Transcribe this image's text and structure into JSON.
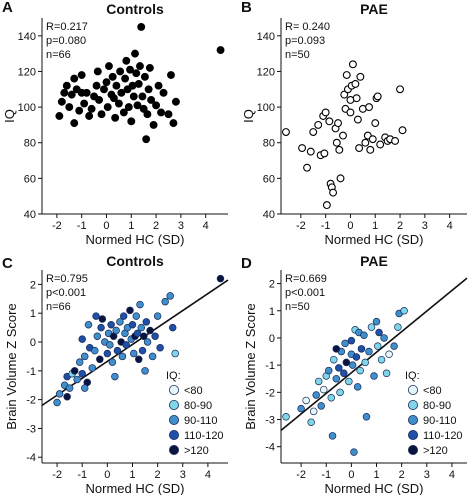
{
  "chart_data": [
    {
      "panel": "A",
      "type": "scatter",
      "title": "Controls",
      "xlabel": "Normed HC (SD)",
      "ylabel": "IQ",
      "xlim": [
        -2.6,
        4.9
      ],
      "ylim": [
        40,
        150
      ],
      "xticks": [
        -2,
        -1,
        0,
        1,
        2,
        3,
        4
      ],
      "yticks": [
        40,
        60,
        80,
        100,
        120,
        140
      ],
      "stats": [
        "R=0.217",
        "p=0.080",
        "n=66"
      ],
      "filled": true,
      "points": [
        [
          -1.9,
          95
        ],
        [
          -1.8,
          103
        ],
        [
          -1.7,
          108
        ],
        [
          -1.6,
          112
        ],
        [
          -1.5,
          100
        ],
        [
          -1.4,
          107
        ],
        [
          -1.3,
          116
        ],
        [
          -1.2,
          110
        ],
        [
          -1.1,
          98
        ],
        [
          -1.0,
          108
        ],
        [
          -1.0,
          118
        ],
        [
          -0.9,
          102
        ],
        [
          -0.8,
          108
        ],
        [
          -0.7,
          95
        ],
        [
          -0.6,
          99
        ],
        [
          -0.5,
          106
        ],
        [
          -0.4,
          112
        ],
        [
          -0.35,
          120
        ],
        [
          -0.3,
          104
        ],
        [
          -0.2,
          96
        ],
        [
          -0.1,
          110
        ],
        [
          0.0,
          114
        ],
        [
          0.05,
          100
        ],
        [
          0.1,
          123
        ],
        [
          0.2,
          107
        ],
        [
          0.25,
          117
        ],
        [
          0.3,
          105
        ],
        [
          0.35,
          94
        ],
        [
          0.4,
          112
        ],
        [
          0.5,
          102
        ],
        [
          0.55,
          120
        ],
        [
          0.6,
          108
        ],
        [
          0.7,
          97
        ],
        [
          0.75,
          116
        ],
        [
          0.8,
          126
        ],
        [
          0.85,
          110
        ],
        [
          0.9,
          100
        ],
        [
          0.95,
          121
        ],
        [
          1.0,
          92
        ],
        [
          1.05,
          112
        ],
        [
          1.1,
          106
        ],
        [
          1.15,
          130
        ],
        [
          1.2,
          119
        ],
        [
          1.25,
          101
        ],
        [
          1.3,
          113
        ],
        [
          1.35,
          123
        ],
        [
          1.4,
          145
        ],
        [
          1.45,
          106
        ],
        [
          1.5,
          99
        ],
        [
          1.55,
          117
        ],
        [
          1.6,
          82
        ],
        [
          1.65,
          96
        ],
        [
          1.7,
          110
        ],
        [
          1.75,
          122
        ],
        [
          1.8,
          104
        ],
        [
          1.9,
          90
        ],
        [
          2.0,
          101
        ],
        [
          2.1,
          112
        ],
        [
          2.2,
          97
        ],
        [
          2.3,
          108
        ],
        [
          2.5,
          96
        ],
        [
          2.6,
          118
        ],
        [
          2.7,
          91
        ],
        [
          2.8,
          103
        ],
        [
          -1.3,
          91
        ],
        [
          4.6,
          132
        ]
      ]
    },
    {
      "panel": "B",
      "type": "scatter",
      "title": "PAE",
      "xlabel": "Normed HC (SD)",
      "ylabel": "IQ",
      "xlim": [
        -2.8,
        4.7
      ],
      "ylim": [
        40,
        150
      ],
      "xticks": [
        -2,
        -1,
        0,
        1,
        2,
        3,
        4
      ],
      "yticks": [
        40,
        60,
        80,
        100,
        120,
        140
      ],
      "stats": [
        "R= 0.240",
        "p=0.093",
        "n=50"
      ],
      "filled": false,
      "points": [
        [
          -2.6,
          86
        ],
        [
          -1.95,
          77
        ],
        [
          -1.75,
          66
        ],
        [
          -1.6,
          75
        ],
        [
          -1.5,
          86
        ],
        [
          -1.3,
          90
        ],
        [
          -1.2,
          73
        ],
        [
          -1.1,
          95
        ],
        [
          -1.05,
          74
        ],
        [
          -1.0,
          97
        ],
        [
          -0.95,
          45
        ],
        [
          -0.85,
          92
        ],
        [
          -0.8,
          57
        ],
        [
          -0.75,
          55
        ],
        [
          -0.7,
          52
        ],
        [
          -0.6,
          88
        ],
        [
          -0.55,
          80
        ],
        [
          -0.5,
          91
        ],
        [
          -0.45,
          76
        ],
        [
          -0.4,
          60
        ],
        [
          -0.3,
          84
        ],
        [
          -0.25,
          107
        ],
        [
          -0.2,
          99
        ],
        [
          -0.15,
          118
        ],
        [
          -0.1,
          110
        ],
        [
          0.0,
          104
        ],
        [
          0.0,
          97
        ],
        [
          0.05,
          112
        ],
        [
          0.1,
          124
        ],
        [
          0.2,
          113
        ],
        [
          0.25,
          105
        ],
        [
          0.3,
          93
        ],
        [
          0.35,
          77
        ],
        [
          0.4,
          117
        ],
        [
          0.5,
          99
        ],
        [
          0.6,
          80
        ],
        [
          0.7,
          84
        ],
        [
          0.75,
          100
        ],
        [
          0.8,
          76
        ],
        [
          0.9,
          82
        ],
        [
          1.0,
          91
        ],
        [
          1.05,
          105
        ],
        [
          1.1,
          106
        ],
        [
          1.2,
          79
        ],
        [
          1.4,
          83
        ],
        [
          1.5,
          81
        ],
        [
          1.6,
          82
        ],
        [
          1.8,
          81
        ],
        [
          2.0,
          110
        ],
        [
          2.1,
          87
        ]
      ]
    },
    {
      "panel": "C",
      "type": "scatter",
      "title": "Controls",
      "xlabel": "Normed HC (SD)",
      "ylabel": "Brain Volume Z Score",
      "xlim": [
        -2.6,
        4.8
      ],
      "ylim": [
        -4.2,
        2.5
      ],
      "xticks": [
        -2,
        -1,
        0,
        1,
        2,
        3,
        4
      ],
      "yticks": [
        -4,
        -3,
        -2,
        -1,
        0,
        1,
        2
      ],
      "stats": [
        "R=0.795",
        "p<0.001",
        "n=66"
      ],
      "regression": {
        "x0": -2.6,
        "y0": -2.2,
        "x1": 4.8,
        "y1": 2.15
      },
      "legend": {
        "title": "IQ:",
        "placement": "bottom-right",
        "items": [
          {
            "label": "<80",
            "color": "#e6f7fb"
          },
          {
            "label": "80-90",
            "color": "#7fd6e8"
          },
          {
            "label": "90-110",
            "color": "#3f8fcc"
          },
          {
            "label": "110-120",
            "color": "#1f4fa8"
          },
          {
            "label": ">120",
            "color": "#0a1440"
          }
        ]
      },
      "points": [
        [
          -2.0,
          -2.1,
          2
        ],
        [
          -1.9,
          -1.8,
          2
        ],
        [
          -1.7,
          -1.5,
          2
        ],
        [
          -1.6,
          -1.2,
          3
        ],
        [
          -1.5,
          -1.6,
          2
        ],
        [
          -1.4,
          -1.1,
          1
        ],
        [
          -1.3,
          -1.0,
          4
        ],
        [
          -1.2,
          -1.3,
          2
        ],
        [
          -1.1,
          -0.7,
          2
        ],
        [
          -1.0,
          -1.1,
          3
        ],
        [
          -1.0,
          0.1,
          3
        ],
        [
          -0.9,
          -0.5,
          2
        ],
        [
          -0.8,
          -1.4,
          4
        ],
        [
          -0.75,
          0.6,
          2
        ],
        [
          -0.7,
          -0.2,
          3
        ],
        [
          -0.6,
          -0.9,
          2
        ],
        [
          -0.5,
          -0.3,
          2
        ],
        [
          -0.45,
          0.9,
          3
        ],
        [
          -0.4,
          0.2,
          2
        ],
        [
          -0.3,
          -0.6,
          4
        ],
        [
          -0.25,
          0.5,
          3
        ],
        [
          -0.2,
          0.8,
          4
        ],
        [
          -0.1,
          0.0,
          2
        ],
        [
          0.0,
          -0.4,
          3
        ],
        [
          0.05,
          0.3,
          2
        ],
        [
          0.1,
          -0.1,
          2
        ],
        [
          0.15,
          0.6,
          3
        ],
        [
          0.2,
          -0.7,
          2
        ],
        [
          0.25,
          0.2,
          4
        ],
        [
          0.3,
          -1.2,
          2
        ],
        [
          0.35,
          0.4,
          2
        ],
        [
          0.4,
          -0.3,
          3
        ],
        [
          0.5,
          0.7,
          2
        ],
        [
          0.55,
          0.0,
          4
        ],
        [
          0.6,
          -0.5,
          2
        ],
        [
          0.65,
          0.9,
          3
        ],
        [
          0.7,
          0.3,
          2
        ],
        [
          0.75,
          -0.1,
          3
        ],
        [
          0.8,
          0.5,
          2
        ],
        [
          0.9,
          1.1,
          4
        ],
        [
          0.95,
          0.1,
          2
        ],
        [
          1.0,
          0.6,
          3
        ],
        [
          1.05,
          -0.4,
          2
        ],
        [
          1.1,
          0.2,
          4
        ],
        [
          1.15,
          0.9,
          2
        ],
        [
          1.2,
          0.3,
          3
        ],
        [
          1.25,
          -0.6,
          4
        ],
        [
          1.3,
          1.3,
          2
        ],
        [
          1.35,
          0.5,
          2
        ],
        [
          1.4,
          -0.3,
          3
        ],
        [
          1.45,
          0.2,
          4
        ],
        [
          1.5,
          -1.0,
          2
        ],
        [
          1.55,
          0.7,
          3
        ],
        [
          1.6,
          0.0,
          2
        ],
        [
          1.7,
          0.4,
          4
        ],
        [
          1.8,
          -0.5,
          2
        ],
        [
          1.9,
          0.2,
          3
        ],
        [
          2.0,
          0.9,
          2
        ],
        [
          2.1,
          -0.2,
          3
        ],
        [
          2.3,
          1.4,
          2
        ],
        [
          2.5,
          1.6,
          2
        ],
        [
          2.6,
          0.5,
          3
        ],
        [
          2.7,
          -0.4,
          1
        ],
        [
          -1.6,
          -1.9,
          4
        ],
        [
          -0.9,
          -1.6,
          2
        ],
        [
          4.5,
          2.2,
          4
        ]
      ]
    },
    {
      "panel": "D",
      "type": "scatter",
      "title": "PAE",
      "xlabel": "Normed HC (SD)",
      "ylabel": "Brain Volume Z Score",
      "xlim": [
        -2.8,
        4.6
      ],
      "ylim": [
        -4.6,
        2.5
      ],
      "xticks": [
        -2,
        -1,
        0,
        1,
        2,
        3,
        4
      ],
      "yticks": [
        -4,
        -3,
        -2,
        -1,
        0,
        1,
        2
      ],
      "stats": [
        "R=0.669",
        "p<0.001",
        "n=50"
      ],
      "regression": {
        "x0": -2.8,
        "y0": -3.4,
        "x1": 4.6,
        "y1": 2.2
      },
      "legend": {
        "title": "IQ:",
        "placement": "bottom-right",
        "items": [
          {
            "label": "<80",
            "color": "#e6f7fb"
          },
          {
            "label": "80-90",
            "color": "#7fd6e8"
          },
          {
            "label": "90-110",
            "color": "#3f8fcc"
          },
          {
            "label": "110-120",
            "color": "#1f4fa8"
          },
          {
            "label": ">120",
            "color": "#0a1440"
          }
        ]
      },
      "points": [
        [
          -2.6,
          -2.9,
          1
        ],
        [
          -2.0,
          -2.6,
          2
        ],
        [
          -1.8,
          -2.3,
          0
        ],
        [
          -1.6,
          -3.1,
          1
        ],
        [
          -1.5,
          -2.7,
          0
        ],
        [
          -1.4,
          -2.1,
          2
        ],
        [
          -1.3,
          -1.6,
          1
        ],
        [
          -1.2,
          -2.5,
          2
        ],
        [
          -1.1,
          -1.9,
          0
        ],
        [
          -1.0,
          -1.4,
          1
        ],
        [
          -0.9,
          -1.2,
          2
        ],
        [
          -0.8,
          -2.2,
          1
        ],
        [
          -0.75,
          -3.6,
          2
        ],
        [
          -0.7,
          -0.8,
          1
        ],
        [
          -0.6,
          -1.5,
          2
        ],
        [
          -0.5,
          -1.1,
          3
        ],
        [
          -0.45,
          -2.0,
          1
        ],
        [
          -0.4,
          -0.5,
          2
        ],
        [
          -0.3,
          -1.3,
          3
        ],
        [
          -0.25,
          -0.2,
          2
        ],
        [
          -0.2,
          -0.9,
          4
        ],
        [
          -0.1,
          -1.6,
          1
        ],
        [
          0.0,
          -0.6,
          2
        ],
        [
          0.0,
          -0.1,
          3
        ],
        [
          0.05,
          -1.0,
          2
        ],
        [
          0.1,
          -4.2,
          2
        ],
        [
          0.15,
          0.3,
          1
        ],
        [
          0.2,
          -0.7,
          3
        ],
        [
          0.25,
          -1.8,
          2
        ],
        [
          0.3,
          0.2,
          2
        ],
        [
          0.35,
          -1.2,
          1
        ],
        [
          0.4,
          -0.4,
          3
        ],
        [
          0.5,
          0.1,
          2
        ],
        [
          0.55,
          -0.9,
          1
        ],
        [
          0.6,
          -2.9,
          2
        ],
        [
          0.7,
          -0.5,
          2
        ],
        [
          0.8,
          0.4,
          1
        ],
        [
          0.9,
          -1.4,
          2
        ],
        [
          1.0,
          0.6,
          2
        ],
        [
          1.05,
          -0.3,
          1
        ],
        [
          1.1,
          0.2,
          3
        ],
        [
          1.2,
          -0.8,
          1
        ],
        [
          1.3,
          0.0,
          2
        ],
        [
          1.4,
          -1.3,
          1
        ],
        [
          1.5,
          -0.6,
          0
        ],
        [
          1.7,
          -0.3,
          2
        ],
        [
          1.9,
          0.9,
          2
        ],
        [
          2.1,
          1.0,
          1
        ],
        [
          1.85,
          0.4,
          1
        ],
        [
          -0.6,
          -0.4,
          4
        ]
      ]
    }
  ]
}
